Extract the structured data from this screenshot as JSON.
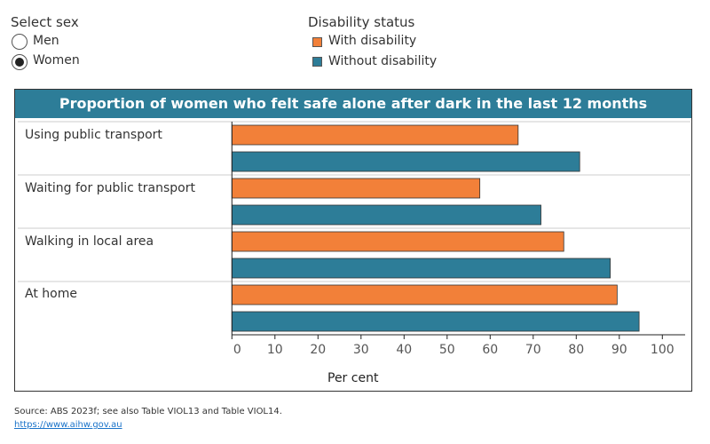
{
  "filter": {
    "title": "Select sex",
    "options": [
      "Men",
      "Women"
    ],
    "selected": "Women"
  },
  "legend": {
    "title": "Disability status",
    "items": [
      {
        "label": "With disability",
        "color": "#f28039"
      },
      {
        "label": "Without disability",
        "color": "#2d7d98"
      }
    ]
  },
  "chart_data": {
    "type": "bar",
    "orientation": "horizontal",
    "title": "Proportion of women who felt safe alone after dark in the last 12 months",
    "categories": [
      "Using public transport",
      "Waiting for public transport",
      "Walking in local area",
      "At home"
    ],
    "series": [
      {
        "name": "With disability",
        "color": "#f28039",
        "values": [
          66.5,
          57.6,
          77.1,
          89.5
        ]
      },
      {
        "name": "Without disability",
        "color": "#2d7d98",
        "values": [
          80.8,
          71.8,
          87.9,
          94.6
        ]
      }
    ],
    "xlabel": "Per cent",
    "xlim": [
      0,
      100
    ],
    "xticks": [
      "0",
      "10",
      "20",
      "30",
      "40",
      "50",
      "60",
      "70",
      "80",
      "90",
      "100"
    ],
    "grid": "horizontal row separators",
    "legend_position": "top"
  },
  "footer": {
    "source": "Source: ABS 2023f; see also Table VIOL13 and Table VIOL14.",
    "link": "https://www.aihw.gov.au"
  }
}
